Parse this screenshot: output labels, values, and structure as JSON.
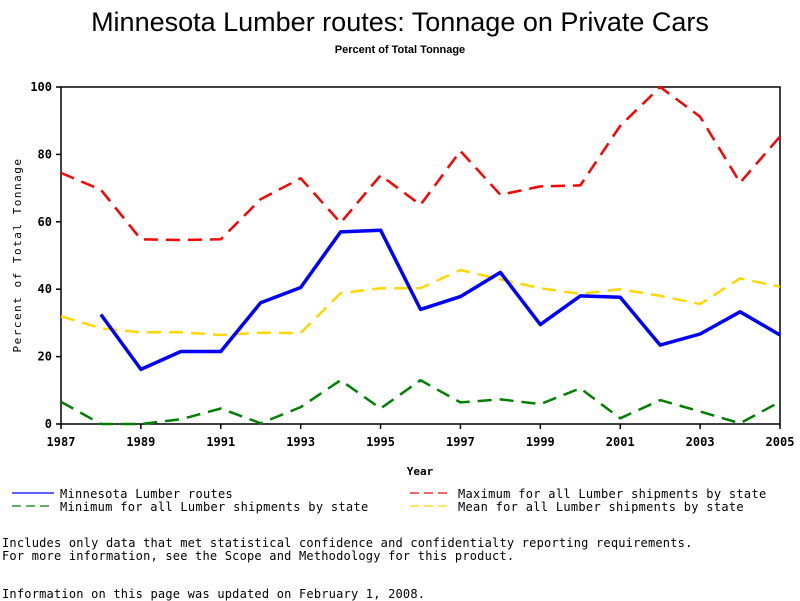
{
  "chart_data": {
    "type": "line",
    "title": "Minnesota Lumber routes: Tonnage on Private Cars",
    "subtitle": "Percent of Total Tonnage",
    "xlabel": "Year",
    "ylabel": "Percent of Total Tonnage",
    "xlim": [
      1987,
      2005
    ],
    "ylim": [
      0,
      100
    ],
    "x_ticks": [
      "1987",
      "1989",
      "1991",
      "1993",
      "1995",
      "1997",
      "1999",
      "2001",
      "2003",
      "2005"
    ],
    "y_ticks": [
      "0",
      "20",
      "40",
      "60",
      "80",
      "100"
    ],
    "grid": false,
    "legend_position": "bottom",
    "x": [
      1987,
      1988,
      1989,
      1990,
      1991,
      1992,
      1993,
      1994,
      1995,
      1996,
      1997,
      1998,
      1999,
      2000,
      2001,
      2002,
      2003,
      2004,
      2005
    ],
    "series": [
      {
        "name": "Minnesota Lumber routes",
        "color": "#0000ff",
        "style": "solid",
        "values": [
          null,
          32.5,
          16.2,
          21.5,
          21.5,
          36.0,
          40.5,
          57.0,
          57.5,
          34.0,
          37.8,
          45.0,
          29.5,
          38.0,
          37.6,
          23.4,
          26.7,
          33.3,
          26.4
        ]
      },
      {
        "name": "Maximum for all Lumber shipments by state",
        "color": "#ff0000",
        "style": "dashed",
        "values": [
          74.5,
          69.5,
          54.8,
          54.6,
          54.8,
          66.7,
          72.9,
          59.7,
          73.8,
          65.0,
          81.0,
          68.0,
          70.5,
          70.8,
          88.5,
          100.0,
          91.2,
          71.6,
          85.3
        ]
      },
      {
        "name": "Minimum for all Lumber shipments by state",
        "color": "#008000",
        "style": "dashed",
        "values": [
          6.6,
          0.0,
          0.0,
          1.4,
          4.6,
          0.2,
          5.0,
          13.0,
          4.6,
          13.0,
          6.4,
          7.3,
          5.9,
          10.6,
          1.7,
          7.1,
          3.7,
          0.2,
          6.6
        ]
      },
      {
        "name": "Mean for all Lumber shipments by state",
        "color": "#ffd700",
        "style": "dashed",
        "values": [
          32.0,
          28.4,
          27.2,
          27.2,
          26.4,
          27.1,
          27.0,
          38.8,
          40.3,
          40.3,
          45.7,
          42.9,
          40.3,
          38.6,
          40.0,
          38.0,
          35.6,
          43.2,
          40.7
        ]
      }
    ],
    "legend_order": [
      0,
      2,
      1,
      3
    ]
  },
  "footer": {
    "note_line1": "Includes only data that met statistical confidence and confidentialty reporting requirements.",
    "note_line2": "For more information, see the Scope and Methodology for this product.",
    "updated": "Information on this page was updated on February 1, 2008."
  }
}
